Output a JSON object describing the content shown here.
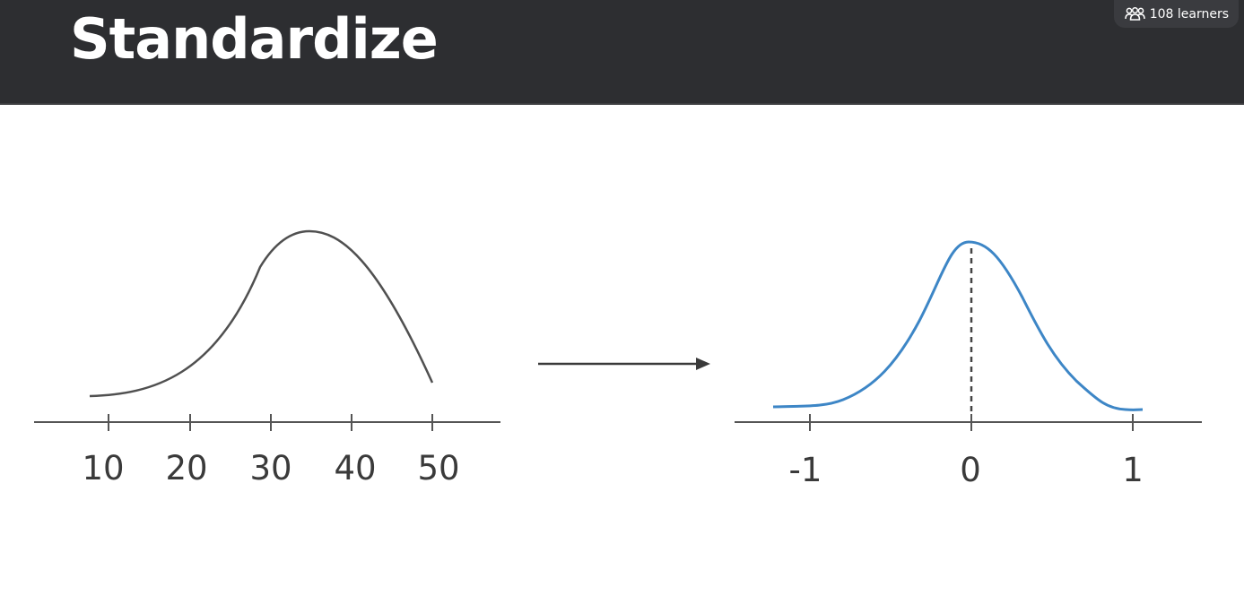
{
  "slide": {
    "title": "Standardize"
  },
  "badge": {
    "icon": "people-icon",
    "label": "108 learners"
  },
  "left_plot": {
    "tick_labels": [
      "10",
      "20",
      "30",
      "40",
      "50"
    ]
  },
  "right_plot": {
    "tick_labels": [
      "-1",
      "0",
      "1"
    ]
  },
  "colors": {
    "header_bg": "#2d2e31",
    "left_curve": "#505050",
    "right_curve": "#3d86c6",
    "axis": "#555555"
  }
}
